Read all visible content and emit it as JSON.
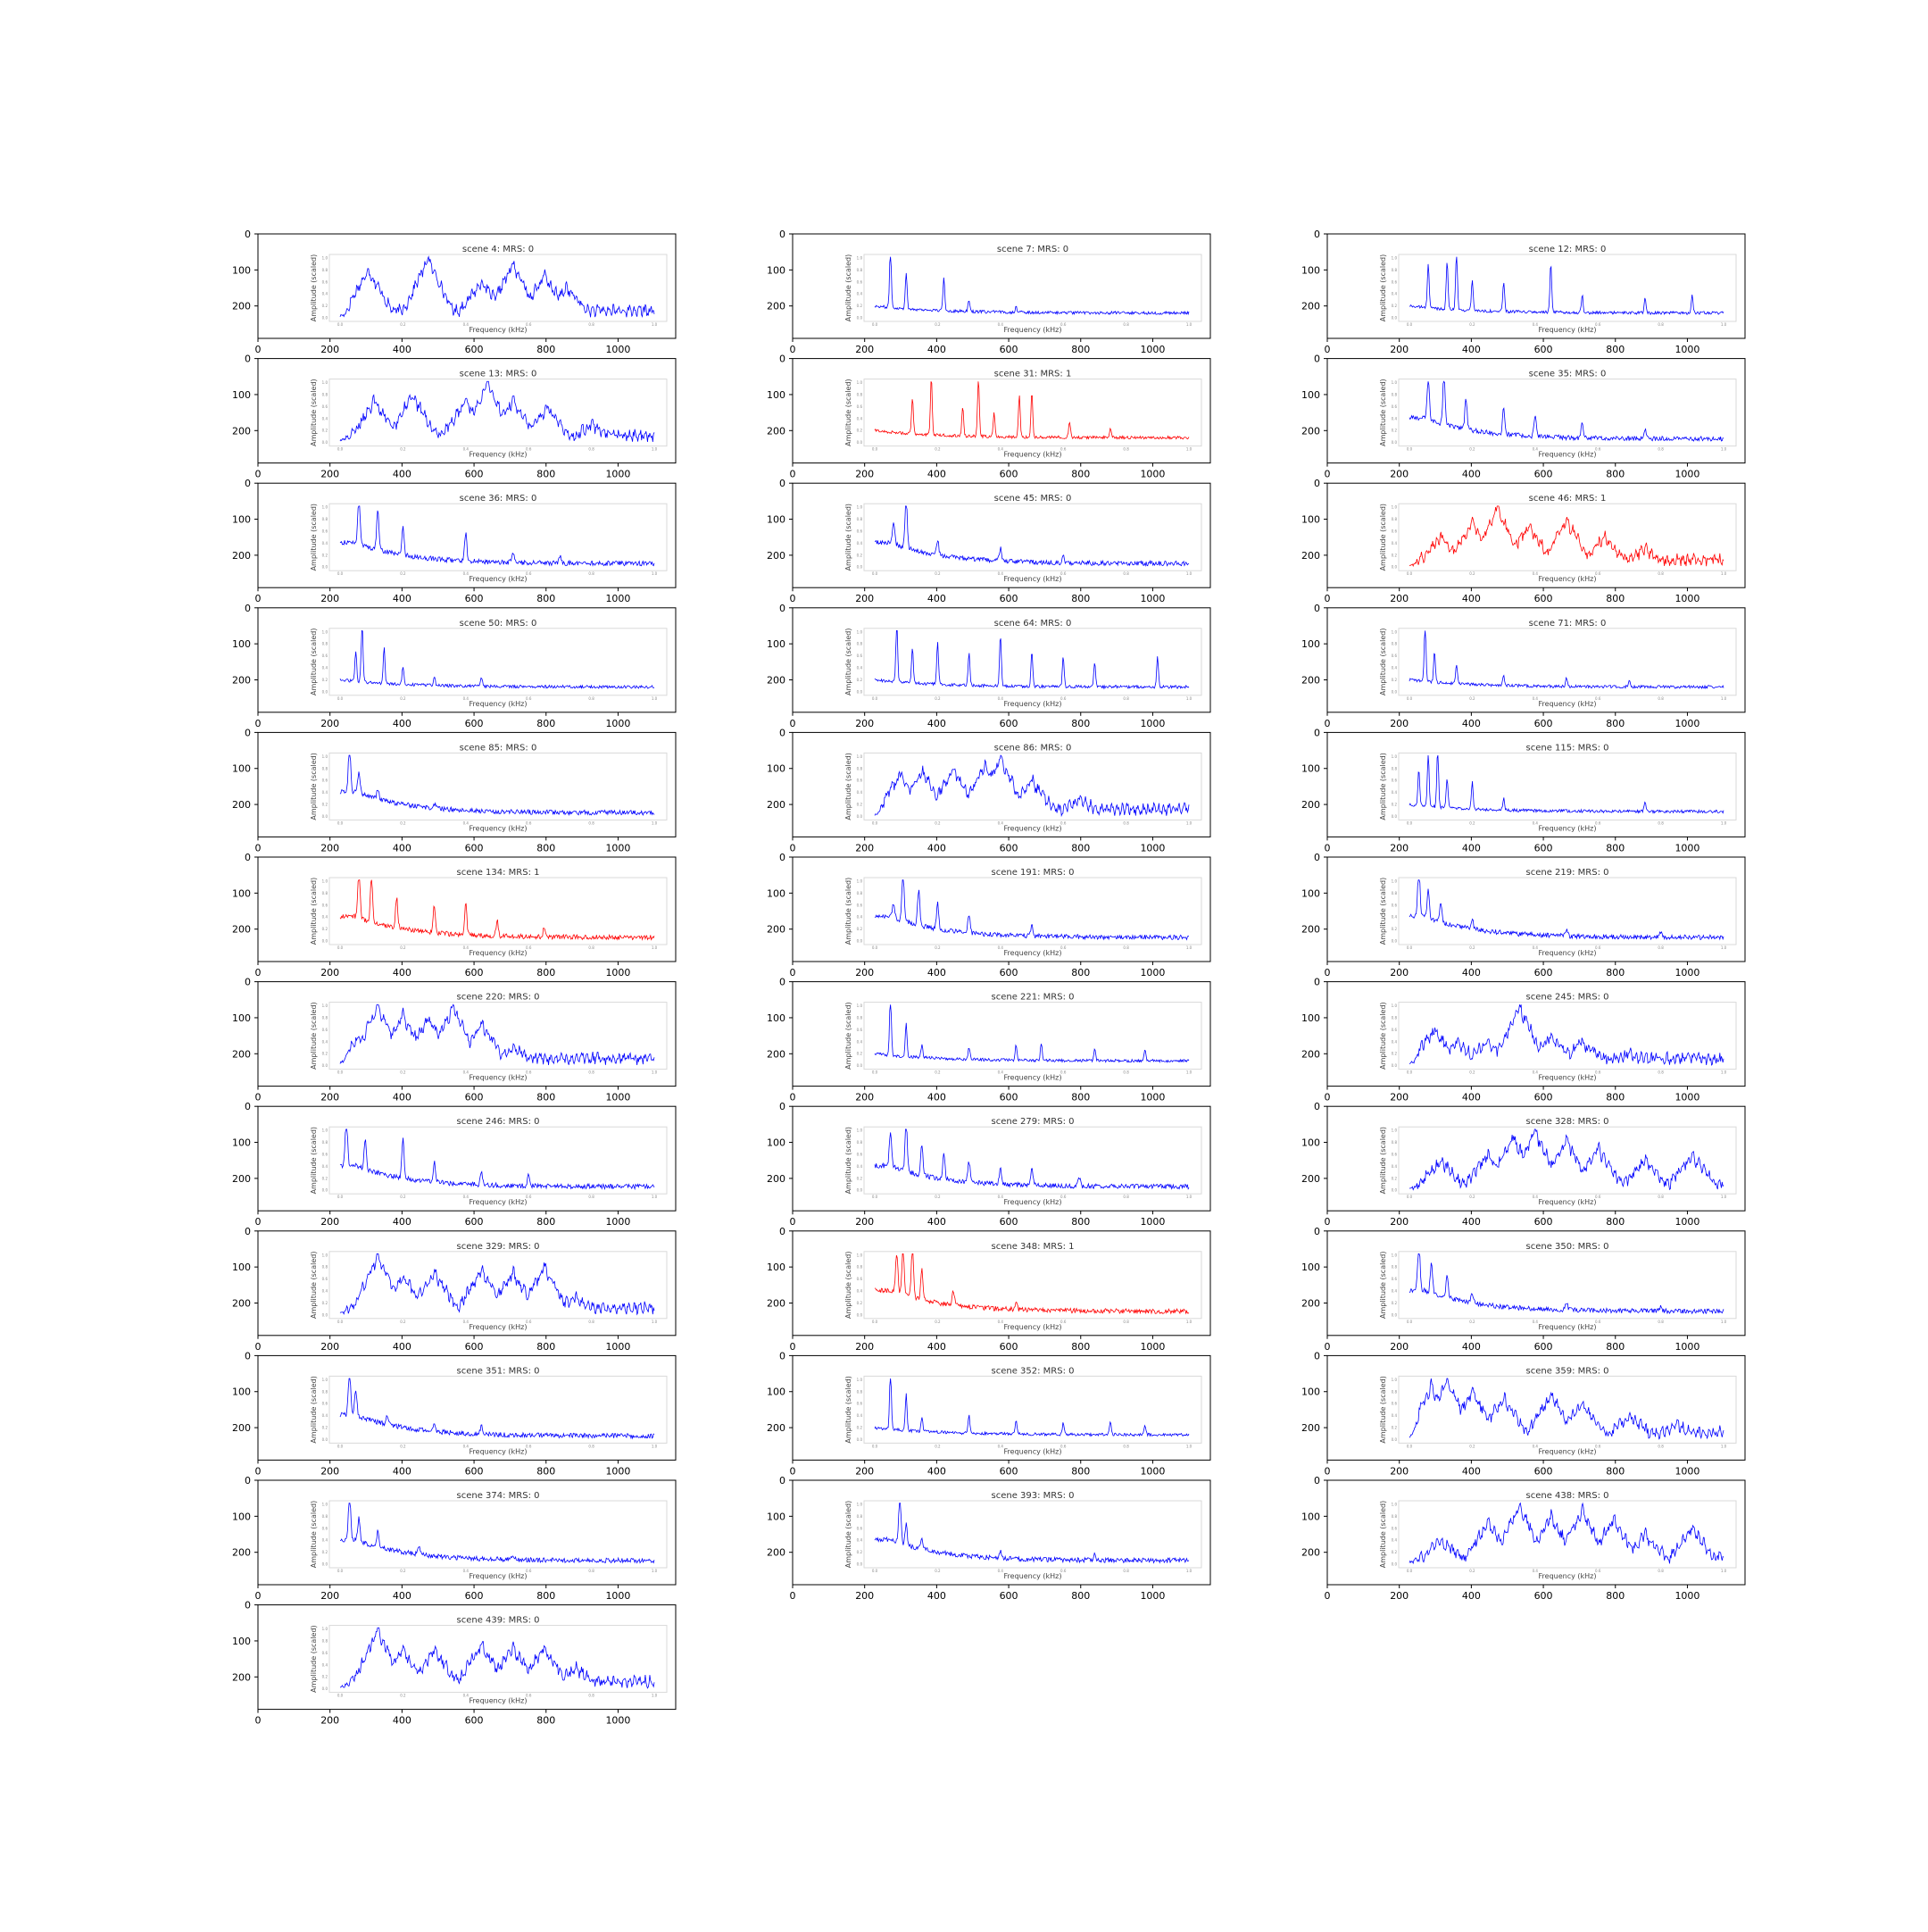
{
  "figure": {
    "inner_ylabel": "Amplitude (scaled)",
    "inner_xlabel": "Frequency (kHz)",
    "inner_xticks": [
      "0.0",
      "0.2",
      "0.4",
      "0.6",
      "0.8",
      "1.0"
    ],
    "inner_yticks": [
      "0.0",
      "0.2",
      "0.4",
      "0.6",
      "0.8",
      "1.0"
    ],
    "outer_xticks": [
      "0",
      "200",
      "400",
      "600",
      "800",
      "1000"
    ],
    "outer_yticks": [
      "0",
      "100",
      "200"
    ],
    "colors": {
      "mrs0": "#0000ff",
      "mrs1": "#ff0000"
    }
  },
  "chart_data": [
    {
      "type": "line",
      "title": "scene 4: MRS: 0",
      "mrs": 0,
      "shape": "broad",
      "peaks": [
        [
          0.09,
          0.8
        ],
        [
          0.28,
          1.0
        ],
        [
          0.45,
          0.6
        ],
        [
          0.55,
          0.9
        ],
        [
          0.65,
          0.7
        ],
        [
          0.72,
          0.5
        ]
      ],
      "xlim": [
        0,
        1
      ],
      "ylim": [
        0,
        1
      ]
    },
    {
      "type": "line",
      "title": "scene 7: MRS: 0",
      "mrs": 0,
      "shape": "spiky",
      "peaks": [
        [
          0.05,
          1.0
        ],
        [
          0.1,
          0.6
        ],
        [
          0.22,
          0.55
        ],
        [
          0.3,
          0.2
        ],
        [
          0.45,
          0.1
        ]
      ],
      "xlim": [
        0,
        1
      ],
      "ylim": [
        0,
        1
      ]
    },
    {
      "type": "line",
      "title": "scene 12: MRS: 0",
      "mrs": 0,
      "shape": "spiky",
      "peaks": [
        [
          0.06,
          0.75
        ],
        [
          0.12,
          0.8
        ],
        [
          0.15,
          1.0
        ],
        [
          0.2,
          0.5
        ],
        [
          0.3,
          0.5
        ],
        [
          0.45,
          0.8
        ],
        [
          0.55,
          0.3
        ],
        [
          0.75,
          0.25
        ],
        [
          0.9,
          0.3
        ]
      ],
      "xlim": [
        0,
        1
      ],
      "ylim": [
        0,
        1
      ]
    },
    {
      "type": "line",
      "title": "scene 13: MRS: 0",
      "mrs": 0,
      "shape": "broad",
      "peaks": [
        [
          0.11,
          0.7
        ],
        [
          0.23,
          0.8
        ],
        [
          0.4,
          0.7
        ],
        [
          0.47,
          1.0
        ],
        [
          0.55,
          0.7
        ],
        [
          0.66,
          0.6
        ],
        [
          0.8,
          0.3
        ]
      ],
      "xlim": [
        0,
        1
      ],
      "ylim": [
        0,
        1
      ]
    },
    {
      "type": "line",
      "title": "scene 31: MRS: 1",
      "mrs": 1,
      "shape": "spiky",
      "peaks": [
        [
          0.12,
          0.6
        ],
        [
          0.18,
          0.95
        ],
        [
          0.28,
          0.5
        ],
        [
          0.33,
          1.0
        ],
        [
          0.38,
          0.4
        ],
        [
          0.46,
          0.7
        ],
        [
          0.5,
          0.75
        ],
        [
          0.62,
          0.25
        ],
        [
          0.75,
          0.15
        ]
      ],
      "xlim": [
        0,
        1
      ],
      "ylim": [
        0,
        1
      ]
    },
    {
      "type": "line",
      "title": "scene 35: MRS: 0",
      "mrs": 0,
      "shape": "decay",
      "peaks": [
        [
          0.06,
          0.8
        ],
        [
          0.11,
          1.0
        ],
        [
          0.18,
          0.6
        ],
        [
          0.3,
          0.55
        ],
        [
          0.4,
          0.4
        ],
        [
          0.55,
          0.3
        ],
        [
          0.75,
          0.2
        ]
      ],
      "xlim": [
        0,
        1
      ],
      "ylim": [
        0,
        1
      ]
    },
    {
      "type": "line",
      "title": "scene 36: MRS: 0",
      "mrs": 0,
      "shape": "decay",
      "peaks": [
        [
          0.06,
          1.0
        ],
        [
          0.12,
          0.8
        ],
        [
          0.2,
          0.55
        ],
        [
          0.4,
          0.55
        ],
        [
          0.55,
          0.2
        ],
        [
          0.7,
          0.15
        ]
      ],
      "xlim": [
        0,
        1
      ],
      "ylim": [
        0,
        1
      ]
    },
    {
      "type": "line",
      "title": "scene 45: MRS: 0",
      "mrs": 0,
      "shape": "decay",
      "peaks": [
        [
          0.06,
          0.4
        ],
        [
          0.1,
          1.0
        ],
        [
          0.2,
          0.3
        ],
        [
          0.4,
          0.25
        ],
        [
          0.6,
          0.15
        ]
      ],
      "xlim": [
        0,
        1
      ],
      "ylim": [
        0,
        1
      ]
    },
    {
      "type": "line",
      "title": "scene 46: MRS: 1",
      "mrs": 1,
      "shape": "broad",
      "peaks": [
        [
          0.1,
          0.5
        ],
        [
          0.2,
          0.75
        ],
        [
          0.28,
          1.0
        ],
        [
          0.38,
          0.7
        ],
        [
          0.5,
          0.8
        ],
        [
          0.62,
          0.5
        ],
        [
          0.75,
          0.3
        ]
      ],
      "xlim": [
        0,
        1
      ],
      "ylim": [
        0,
        1
      ]
    },
    {
      "type": "line",
      "title": "scene 50: MRS: 0",
      "mrs": 0,
      "shape": "spiky",
      "peaks": [
        [
          0.05,
          0.5
        ],
        [
          0.07,
          1.0
        ],
        [
          0.14,
          0.6
        ],
        [
          0.2,
          0.3
        ],
        [
          0.3,
          0.15
        ],
        [
          0.45,
          0.15
        ]
      ],
      "xlim": [
        0,
        1
      ],
      "ylim": [
        0,
        1
      ]
    },
    {
      "type": "line",
      "title": "scene 64: MRS: 0",
      "mrs": 0,
      "shape": "spiky",
      "peaks": [
        [
          0.07,
          1.0
        ],
        [
          0.12,
          0.6
        ],
        [
          0.2,
          0.7
        ],
        [
          0.3,
          0.55
        ],
        [
          0.4,
          0.85
        ],
        [
          0.5,
          0.6
        ],
        [
          0.6,
          0.5
        ],
        [
          0.7,
          0.4
        ],
        [
          0.9,
          0.5
        ]
      ],
      "xlim": [
        0,
        1
      ],
      "ylim": [
        0,
        1
      ]
    },
    {
      "type": "line",
      "title": "scene 71: MRS: 0",
      "mrs": 0,
      "shape": "spiky",
      "peaks": [
        [
          0.05,
          1.0
        ],
        [
          0.08,
          0.5
        ],
        [
          0.15,
          0.3
        ],
        [
          0.3,
          0.15
        ],
        [
          0.5,
          0.15
        ],
        [
          0.7,
          0.1
        ]
      ],
      "xlim": [
        0,
        1
      ],
      "ylim": [
        0,
        1
      ]
    },
    {
      "type": "line",
      "title": "scene 85: MRS: 0",
      "mrs": 0,
      "shape": "decay",
      "peaks": [
        [
          0.03,
          1.0
        ],
        [
          0.06,
          0.45
        ],
        [
          0.12,
          0.2
        ],
        [
          0.3,
          0.08
        ]
      ],
      "xlim": [
        0,
        1
      ],
      "ylim": [
        0,
        1
      ]
    },
    {
      "type": "line",
      "title": "scene 86: MRS: 0",
      "mrs": 0,
      "shape": "broad",
      "peaks": [
        [
          0.08,
          0.7
        ],
        [
          0.15,
          0.75
        ],
        [
          0.25,
          0.8
        ],
        [
          0.35,
          0.85
        ],
        [
          0.4,
          1.0
        ],
        [
          0.5,
          0.6
        ],
        [
          0.65,
          0.3
        ]
      ],
      "xlim": [
        0,
        1
      ],
      "ylim": [
        0,
        1
      ]
    },
    {
      "type": "line",
      "title": "scene 115: MRS: 0",
      "mrs": 0,
      "shape": "spiky",
      "peaks": [
        [
          0.03,
          0.6
        ],
        [
          0.06,
          0.9
        ],
        [
          0.09,
          1.0
        ],
        [
          0.12,
          0.5
        ],
        [
          0.2,
          0.45
        ],
        [
          0.3,
          0.2
        ],
        [
          0.75,
          0.15
        ]
      ],
      "xlim": [
        0,
        1
      ],
      "ylim": [
        0,
        1
      ]
    },
    {
      "type": "line",
      "title": "scene 134: MRS: 1",
      "mrs": 1,
      "shape": "decay",
      "peaks": [
        [
          0.06,
          1.0
        ],
        [
          0.1,
          0.9
        ],
        [
          0.18,
          0.6
        ],
        [
          0.3,
          0.55
        ],
        [
          0.4,
          0.6
        ],
        [
          0.5,
          0.3
        ],
        [
          0.65,
          0.2
        ]
      ],
      "xlim": [
        0,
        1
      ],
      "ylim": [
        0,
        1
      ]
    },
    {
      "type": "line",
      "title": "scene 191: MRS: 0",
      "mrs": 0,
      "shape": "decay",
      "peaks": [
        [
          0.06,
          0.3
        ],
        [
          0.09,
          1.0
        ],
        [
          0.14,
          0.7
        ],
        [
          0.2,
          0.5
        ],
        [
          0.3,
          0.35
        ],
        [
          0.5,
          0.2
        ]
      ],
      "xlim": [
        0,
        1
      ],
      "ylim": [
        0,
        1
      ]
    },
    {
      "type": "line",
      "title": "scene 219: MRS: 0",
      "mrs": 0,
      "shape": "decay",
      "peaks": [
        [
          0.03,
          1.0
        ],
        [
          0.06,
          0.55
        ],
        [
          0.1,
          0.4
        ],
        [
          0.2,
          0.2
        ],
        [
          0.5,
          0.12
        ],
        [
          0.8,
          0.08
        ]
      ],
      "xlim": [
        0,
        1
      ],
      "ylim": [
        0,
        1
      ]
    },
    {
      "type": "line",
      "title": "scene 220: MRS: 0",
      "mrs": 0,
      "shape": "broad",
      "peaks": [
        [
          0.06,
          0.5
        ],
        [
          0.12,
          1.0
        ],
        [
          0.2,
          0.85
        ],
        [
          0.28,
          0.8
        ],
        [
          0.36,
          1.0
        ],
        [
          0.45,
          0.7
        ],
        [
          0.55,
          0.3
        ]
      ],
      "xlim": [
        0,
        1
      ],
      "ylim": [
        0,
        1
      ]
    },
    {
      "type": "line",
      "title": "scene 221: MRS: 0",
      "mrs": 0,
      "shape": "spiky",
      "peaks": [
        [
          0.05,
          1.0
        ],
        [
          0.1,
          0.55
        ],
        [
          0.15,
          0.2
        ],
        [
          0.3,
          0.2
        ],
        [
          0.45,
          0.25
        ],
        [
          0.53,
          0.3
        ],
        [
          0.7,
          0.2
        ],
        [
          0.86,
          0.2
        ]
      ],
      "xlim": [
        0,
        1
      ],
      "ylim": [
        0,
        1
      ]
    },
    {
      "type": "line",
      "title": "scene 245: MRS: 0",
      "mrs": 0,
      "shape": "broad",
      "peaks": [
        [
          0.08,
          0.6
        ],
        [
          0.15,
          0.4
        ],
        [
          0.25,
          0.4
        ],
        [
          0.35,
          1.0
        ],
        [
          0.45,
          0.5
        ],
        [
          0.55,
          0.4
        ],
        [
          0.7,
          0.2
        ]
      ],
      "xlim": [
        0,
        1
      ],
      "ylim": [
        0,
        1
      ]
    },
    {
      "type": "line",
      "title": "scene 246: MRS: 0",
      "mrs": 0,
      "shape": "decay",
      "peaks": [
        [
          0.02,
          1.0
        ],
        [
          0.08,
          0.6
        ],
        [
          0.2,
          0.8
        ],
        [
          0.3,
          0.4
        ],
        [
          0.45,
          0.25
        ],
        [
          0.6,
          0.2
        ]
      ],
      "xlim": [
        0,
        1
      ],
      "ylim": [
        0,
        1
      ]
    },
    {
      "type": "line",
      "title": "scene 279: MRS: 0",
      "mrs": 0,
      "shape": "decay",
      "peaks": [
        [
          0.05,
          0.7
        ],
        [
          0.1,
          1.0
        ],
        [
          0.15,
          0.6
        ],
        [
          0.22,
          0.5
        ],
        [
          0.3,
          0.4
        ],
        [
          0.4,
          0.3
        ],
        [
          0.5,
          0.35
        ],
        [
          0.65,
          0.2
        ]
      ],
      "xlim": [
        0,
        1
      ],
      "ylim": [
        0,
        1
      ]
    },
    {
      "type": "line",
      "title": "scene 328: MRS: 0",
      "mrs": 0,
      "shape": "broad",
      "peaks": [
        [
          0.1,
          0.5
        ],
        [
          0.25,
          0.6
        ],
        [
          0.33,
          0.9
        ],
        [
          0.4,
          1.0
        ],
        [
          0.5,
          0.85
        ],
        [
          0.6,
          0.7
        ],
        [
          0.75,
          0.5
        ],
        [
          0.9,
          0.6
        ]
      ],
      "xlim": [
        0,
        1
      ],
      "ylim": [
        0,
        1
      ]
    },
    {
      "type": "line",
      "title": "scene 329: MRS: 0",
      "mrs": 0,
      "shape": "broad",
      "peaks": [
        [
          0.12,
          1.0
        ],
        [
          0.2,
          0.65
        ],
        [
          0.3,
          0.7
        ],
        [
          0.45,
          0.75
        ],
        [
          0.55,
          0.7
        ],
        [
          0.65,
          0.8
        ],
        [
          0.75,
          0.3
        ]
      ],
      "xlim": [
        0,
        1
      ],
      "ylim": [
        0,
        1
      ]
    },
    {
      "type": "line",
      "title": "scene 348: MRS: 1",
      "mrs": 1,
      "shape": "decay",
      "peaks": [
        [
          0.07,
          0.8
        ],
        [
          0.09,
          0.9
        ],
        [
          0.12,
          1.0
        ],
        [
          0.15,
          0.6
        ],
        [
          0.25,
          0.3
        ],
        [
          0.45,
          0.15
        ]
      ],
      "xlim": [
        0,
        1
      ],
      "ylim": [
        0,
        1
      ]
    },
    {
      "type": "line",
      "title": "scene 350: MRS: 0",
      "mrs": 0,
      "shape": "decay",
      "peaks": [
        [
          0.03,
          1.0
        ],
        [
          0.07,
          0.6
        ],
        [
          0.12,
          0.4
        ],
        [
          0.2,
          0.2
        ],
        [
          0.5,
          0.15
        ],
        [
          0.8,
          0.1
        ]
      ],
      "xlim": [
        0,
        1
      ],
      "ylim": [
        0,
        1
      ]
    },
    {
      "type": "line",
      "title": "scene 351: MRS: 0",
      "mrs": 0,
      "shape": "decay",
      "peaks": [
        [
          0.03,
          1.0
        ],
        [
          0.05,
          0.5
        ],
        [
          0.15,
          0.2
        ],
        [
          0.3,
          0.15
        ],
        [
          0.45,
          0.15
        ]
      ],
      "xlim": [
        0,
        1
      ],
      "ylim": [
        0,
        1
      ]
    },
    {
      "type": "line",
      "title": "scene 352: MRS: 0",
      "mrs": 0,
      "shape": "spiky",
      "peaks": [
        [
          0.05,
          1.0
        ],
        [
          0.1,
          0.6
        ],
        [
          0.15,
          0.25
        ],
        [
          0.3,
          0.3
        ],
        [
          0.45,
          0.25
        ],
        [
          0.6,
          0.2
        ],
        [
          0.75,
          0.2
        ],
        [
          0.86,
          0.15
        ]
      ],
      "xlim": [
        0,
        1
      ],
      "ylim": [
        0,
        1
      ]
    },
    {
      "type": "line",
      "title": "scene 359: MRS: 0",
      "mrs": 0,
      "shape": "broad",
      "peaks": [
        [
          0.07,
          0.9
        ],
        [
          0.12,
          1.0
        ],
        [
          0.2,
          0.8
        ],
        [
          0.3,
          0.7
        ],
        [
          0.45,
          0.75
        ],
        [
          0.55,
          0.6
        ],
        [
          0.7,
          0.4
        ],
        [
          0.85,
          0.25
        ]
      ],
      "xlim": [
        0,
        1
      ],
      "ylim": [
        0,
        1
      ]
    },
    {
      "type": "line",
      "title": "scene 374: MRS: 0",
      "mrs": 0,
      "shape": "decay",
      "peaks": [
        [
          0.03,
          1.0
        ],
        [
          0.06,
          0.45
        ],
        [
          0.12,
          0.3
        ],
        [
          0.25,
          0.15
        ],
        [
          0.55,
          0.1
        ]
      ],
      "xlim": [
        0,
        1
      ],
      "ylim": [
        0,
        1
      ]
    },
    {
      "type": "line",
      "title": "scene 393: MRS: 0",
      "mrs": 0,
      "shape": "decay",
      "peaks": [
        [
          0.08,
          1.0
        ],
        [
          0.1,
          0.4
        ],
        [
          0.15,
          0.2
        ],
        [
          0.4,
          0.12
        ],
        [
          0.7,
          0.12
        ]
      ],
      "xlim": [
        0,
        1
      ],
      "ylim": [
        0,
        1
      ]
    },
    {
      "type": "line",
      "title": "scene 438: MRS: 0",
      "mrs": 0,
      "shape": "broad",
      "peaks": [
        [
          0.1,
          0.4
        ],
        [
          0.25,
          0.7
        ],
        [
          0.35,
          1.0
        ],
        [
          0.45,
          0.8
        ],
        [
          0.55,
          0.9
        ],
        [
          0.65,
          0.75
        ],
        [
          0.75,
          0.5
        ],
        [
          0.9,
          0.6
        ]
      ],
      "xlim": [
        0,
        1
      ],
      "ylim": [
        0,
        1
      ]
    },
    {
      "type": "line",
      "title": "scene 439: MRS: 0",
      "mrs": 0,
      "shape": "broad",
      "peaks": [
        [
          0.12,
          1.0
        ],
        [
          0.2,
          0.65
        ],
        [
          0.3,
          0.65
        ],
        [
          0.45,
          0.75
        ],
        [
          0.55,
          0.7
        ],
        [
          0.65,
          0.7
        ],
        [
          0.75,
          0.35
        ]
      ],
      "xlim": [
        0,
        1
      ],
      "ylim": [
        0,
        1
      ]
    }
  ]
}
